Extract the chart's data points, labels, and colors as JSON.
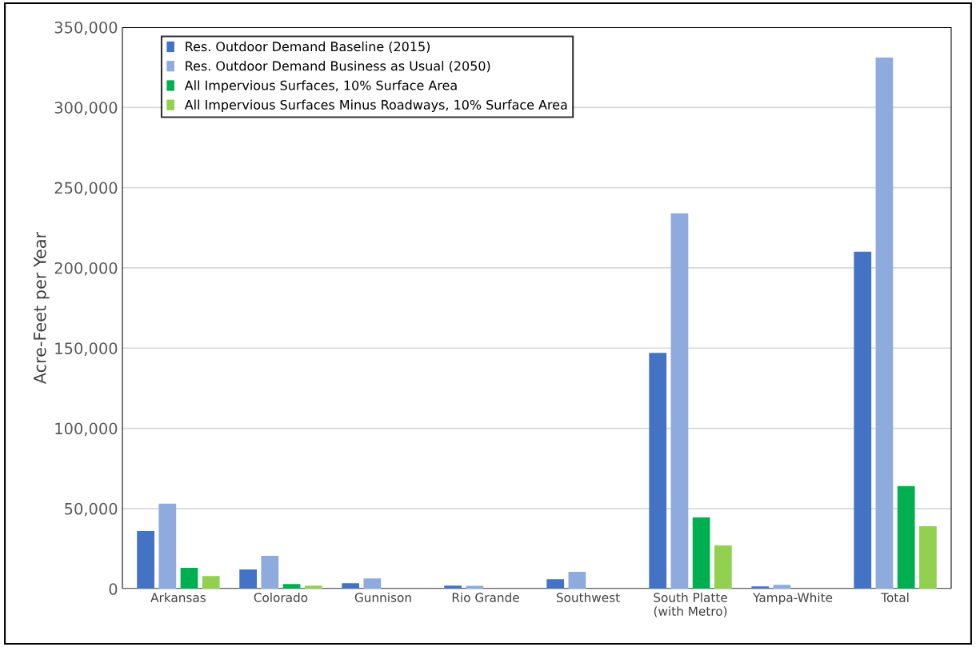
{
  "chart_data": {
    "type": "bar",
    "ylabel": "Acre-Feet per Year",
    "categories": [
      "Arkansas",
      "Colorado",
      "Gunnison",
      "Rio Grande",
      "Southwest",
      "South Platte\n(with Metro)",
      "Yampa-White",
      "Total"
    ],
    "series": [
      {
        "name": "Res. Outdoor Demand Baseline (2015)",
        "color": "#4472c4",
        "values": [
          36000,
          12000,
          3500,
          2000,
          6000,
          147000,
          1500,
          210000
        ]
      },
      {
        "name": "Res. Outdoor Demand Business as Usual (2050)",
        "color": "#8faadc",
        "values": [
          53000,
          20500,
          6500,
          1800,
          10500,
          234000,
          2500,
          331000
        ]
      },
      {
        "name": "All Impervious Surfaces, 10% Surface Area",
        "color": "#00b050",
        "values": [
          13000,
          3000,
          0,
          0,
          0,
          44500,
          0,
          64000
        ]
      },
      {
        "name": "All Impervious Surfaces Minus Roadways, 10% Surface Area",
        "color": "#92d050",
        "values": [
          8000,
          2000,
          0,
          0,
          0,
          27000,
          0,
          39000
        ]
      }
    ],
    "ylim": [
      0,
      350000
    ],
    "yticks": [
      {
        "value": 0,
        "label": "0"
      },
      {
        "value": 50000,
        "label": "50,000"
      },
      {
        "value": 100000,
        "label": "100,000"
      },
      {
        "value": 150000,
        "label": "150,000"
      },
      {
        "value": 200000,
        "label": "200,000"
      },
      {
        "value": 250000,
        "label": "250,000"
      },
      {
        "value": 300000,
        "label": "300,000"
      },
      {
        "value": 350000,
        "label": "350,000"
      }
    ],
    "grid": "y",
    "legend": "top left"
  }
}
